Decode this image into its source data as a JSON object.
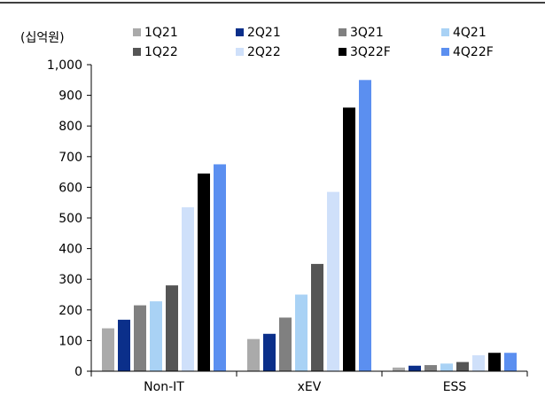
{
  "chart_data": {
    "type": "bar",
    "ylabel": "(십억원)",
    "categories": [
      "Non-IT",
      "xEV",
      "ESS"
    ],
    "ylim": [
      0,
      1000
    ],
    "yticks": [
      0,
      100,
      200,
      300,
      400,
      500,
      600,
      700,
      800,
      900,
      1000
    ],
    "ytick_labels": [
      "0",
      "100",
      "200",
      "300",
      "400",
      "500",
      "600",
      "700",
      "800",
      "900",
      "1,000"
    ],
    "grid": false,
    "legend_position": "top",
    "series": [
      {
        "name": "1Q21",
        "color": "#aaaaaa",
        "values": [
          140,
          105,
          12
        ]
      },
      {
        "name": "2Q21",
        "color": "#0b2f8a",
        "values": [
          168,
          122,
          18
        ]
      },
      {
        "name": "3Q21",
        "color": "#808080",
        "values": [
          215,
          175,
          20
        ]
      },
      {
        "name": "4Q21",
        "color": "#a9d2f5",
        "values": [
          228,
          250,
          25
        ]
      },
      {
        "name": "1Q22",
        "color": "#555555",
        "values": [
          280,
          350,
          30
        ]
      },
      {
        "name": "2Q22",
        "color": "#cfe0fa",
        "values": [
          535,
          585,
          52
        ]
      },
      {
        "name": "3Q22F",
        "color": "#000000",
        "values": [
          645,
          860,
          60
        ]
      },
      {
        "name": "4Q22F",
        "color": "#5b8ff0",
        "values": [
          675,
          950,
          60
        ]
      }
    ]
  }
}
